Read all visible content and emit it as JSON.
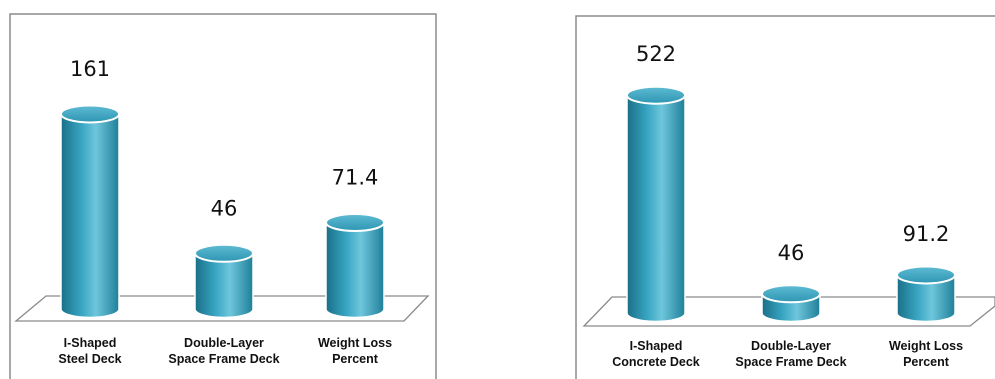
{
  "chart_data": [
    {
      "type": "bar",
      "style": "3d-cylinder",
      "categories": [
        [
          "I-Shaped",
          "Steel Deck"
        ],
        [
          "Double-Layer",
          "Space Frame Deck"
        ],
        [
          "Weight Loss",
          "Percent"
        ]
      ],
      "values": [
        161,
        46,
        71.4
      ],
      "value_labels": [
        "161",
        "46",
        "71.4"
      ],
      "title": "",
      "xlabel": "",
      "ylabel": "",
      "ylim": [
        0,
        175
      ],
      "grid": false,
      "legend": "none"
    },
    {
      "type": "bar",
      "style": "3d-cylinder",
      "categories": [
        [
          "I-Shaped",
          "Concrete Deck"
        ],
        [
          "Double-Layer",
          "Space Frame Deck"
        ],
        [
          "Weight Loss",
          "Percent"
        ]
      ],
      "values": [
        522,
        46,
        91.2
      ],
      "value_labels": [
        "522",
        "46",
        "91.2"
      ],
      "title": "",
      "xlabel": "",
      "ylabel": "",
      "ylim": [
        0,
        580
      ],
      "grid": false,
      "legend": "none"
    }
  ],
  "colors": {
    "bar_dark": "#1f7f99",
    "bar_mid": "#3aa9c6",
    "bar_light": "#8fd6e8",
    "bar_top": "#6cc3da",
    "frame": "#8c8c8c",
    "floor_stroke": "#8a8a8a"
  }
}
